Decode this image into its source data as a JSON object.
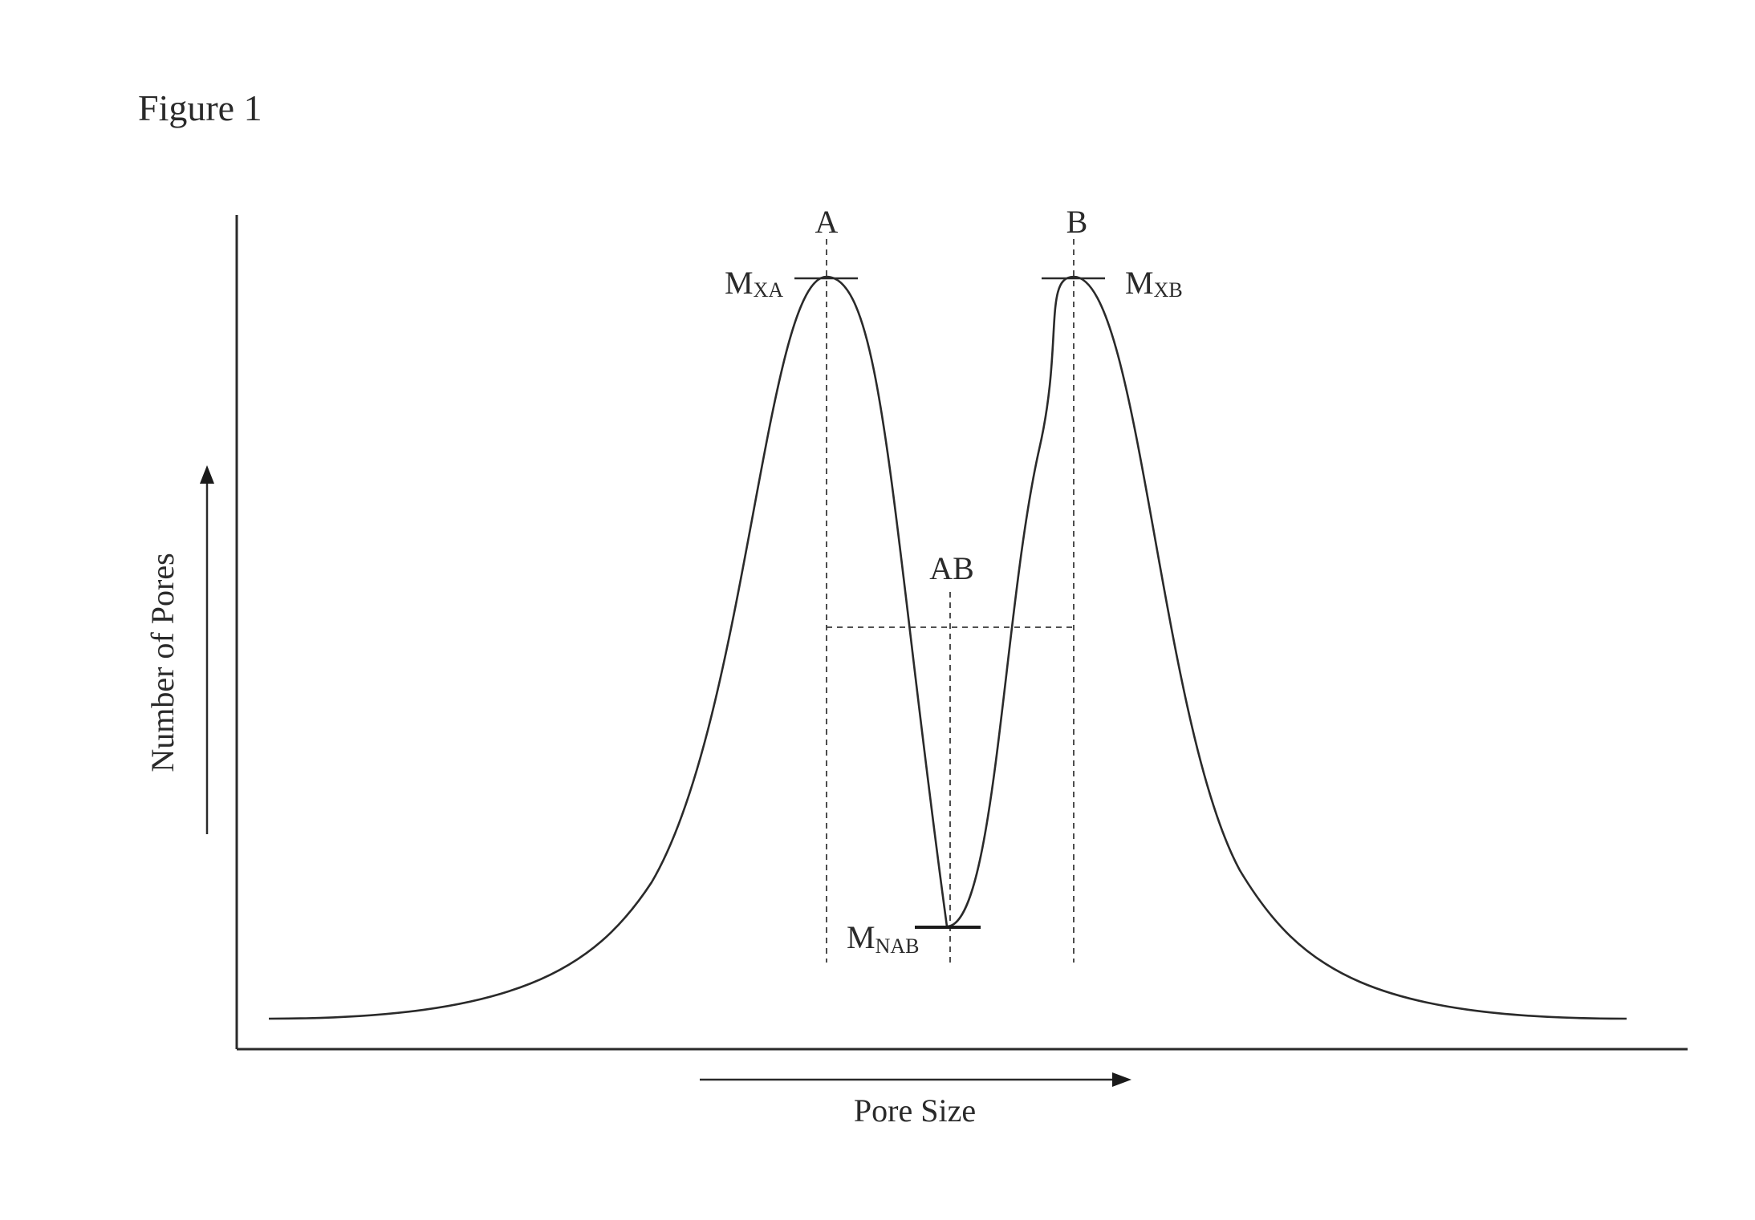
{
  "figure": {
    "title": "Figure 1"
  },
  "axes": {
    "x_label": "Pore Size",
    "y_label": "Number of Pores"
  },
  "markers": {
    "peak_a": "A",
    "peak_b": "B",
    "midpoint": "AB"
  },
  "annotations": {
    "max_a": {
      "main": "M",
      "sub": "XA"
    },
    "max_b": {
      "main": "M",
      "sub": "XB"
    },
    "min_ab": {
      "main": "M",
      "sub": "NAB"
    }
  }
}
